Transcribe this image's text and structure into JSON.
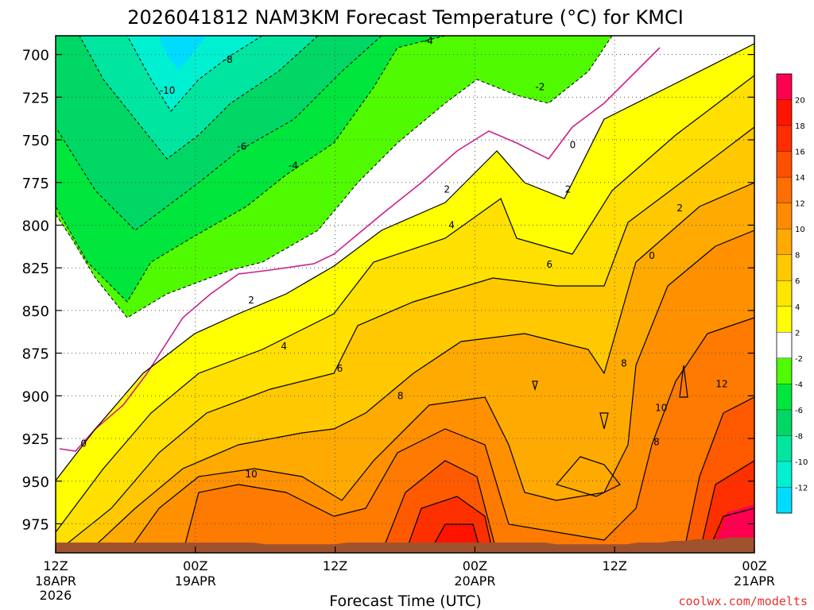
{
  "chart_data": {
    "type": "heatmap",
    "title": "2026041812 NAM3KM Forecast Temperature (°C) for KMCI",
    "xlabel": "Forecast Time (UTC)",
    "ylabel": "",
    "x_ticks": [
      {
        "line1": "12Z",
        "line2": "18APR",
        "line3": "2026",
        "hours": 0
      },
      {
        "line1": "00Z",
        "line2": "19APR",
        "line3": "",
        "hours": 12
      },
      {
        "line1": "12Z",
        "line2": "",
        "line3": "",
        "hours": 24
      },
      {
        "line1": "00Z",
        "line2": "20APR",
        "line3": "",
        "hours": 36
      },
      {
        "line1": "12Z",
        "line2": "",
        "line3": "",
        "hours": 48
      },
      {
        "line1": "00Z",
        "line2": "21APR",
        "line3": "",
        "hours": 60
      }
    ],
    "xlim": [
      0,
      60
    ],
    "y_ticks": [
      700,
      725,
      750,
      775,
      800,
      825,
      850,
      875,
      900,
      925,
      950,
      975
    ],
    "ylim": [
      689,
      992
    ],
    "surface_pressure": [
      986,
      986,
      986,
      986,
      986,
      986,
      986,
      986,
      986,
      986,
      986,
      986,
      986,
      986,
      986,
      986,
      986,
      986,
      987,
      987,
      987,
      987,
      987,
      987,
      987,
      986,
      986,
      986,
      986,
      986,
      986,
      986,
      986,
      986,
      986,
      986,
      986,
      986,
      986,
      986,
      986,
      986,
      986,
      987,
      987,
      987,
      987,
      987,
      987,
      987,
      986,
      986,
      986,
      985,
      985,
      984,
      984,
      984,
      983,
      983,
      983
    ],
    "colorbar": {
      "levels": [
        -14,
        -12,
        -10,
        -8,
        -6,
        -4,
        -2,
        2,
        4,
        6,
        8,
        10,
        12,
        14,
        16,
        18,
        20,
        22
      ],
      "labels": [
        "-12",
        "-10",
        "-8",
        "-6",
        "-4",
        "-2",
        "2",
        "4",
        "6",
        "8",
        "10",
        "12",
        "14",
        "16",
        "18",
        "20"
      ],
      "colors": [
        "#00dcff",
        "#00f0d2",
        "#00e6a0",
        "#00d764",
        "#00e63c",
        "#50fa00",
        "#ffffff",
        "#ffff00",
        "#ffe600",
        "#ffc800",
        "#ffaa00",
        "#ff8c00",
        "#ff6e00",
        "#ff5000",
        "#ff2d00",
        "#ff1400",
        "#ff0050"
      ]
    },
    "contour_labels": [
      {
        "text": "-10",
        "hours": 2.4,
        "p": 721
      },
      {
        "text": "-8",
        "hours": 3.7,
        "p": 703
      },
      {
        "text": "-6",
        "hours": 4.0,
        "p": 754
      },
      {
        "text": "-4",
        "hours": 5.1,
        "p": 765
      },
      {
        "text": "-4",
        "hours": 8.0,
        "p": 692
      },
      {
        "text": "-2",
        "hours": 10.4,
        "p": 719
      },
      {
        "text": "2",
        "hours": 13.4,
        "p": 790
      },
      {
        "text": "0",
        "hours": 12.8,
        "p": 818
      },
      {
        "text": "0",
        "hours": 0.6,
        "p": 928
      },
      {
        "text": "2",
        "hours": 4.2,
        "p": 844
      },
      {
        "text": "4",
        "hours": 4.9,
        "p": 871
      },
      {
        "text": "6",
        "hours": 6.1,
        "p": 884
      },
      {
        "text": "8",
        "hours": 7.4,
        "p": 900
      },
      {
        "text": "10",
        "hours": 4.2,
        "p": 946
      },
      {
        "text": "2",
        "hours": 8.4,
        "p": 779
      },
      {
        "text": "4",
        "hours": 8.5,
        "p": 800
      },
      {
        "text": "6",
        "hours": 10.6,
        "p": 823
      },
      {
        "text": "0",
        "hours": 11.1,
        "p": 753
      },
      {
        "text": "2",
        "hours": 11.0,
        "p": 779
      },
      {
        "text": "8",
        "hours": 12.2,
        "p": 881
      },
      {
        "text": "10",
        "hours": 13.0,
        "p": 907
      },
      {
        "text": "8",
        "hours": 12.9,
        "p": 927
      },
      {
        "text": "12",
        "hours": 14.3,
        "p": 893
      }
    ]
  },
  "footer": {
    "credit": "coolwx.com/modelts",
    "credit_color": "#e8302f"
  }
}
